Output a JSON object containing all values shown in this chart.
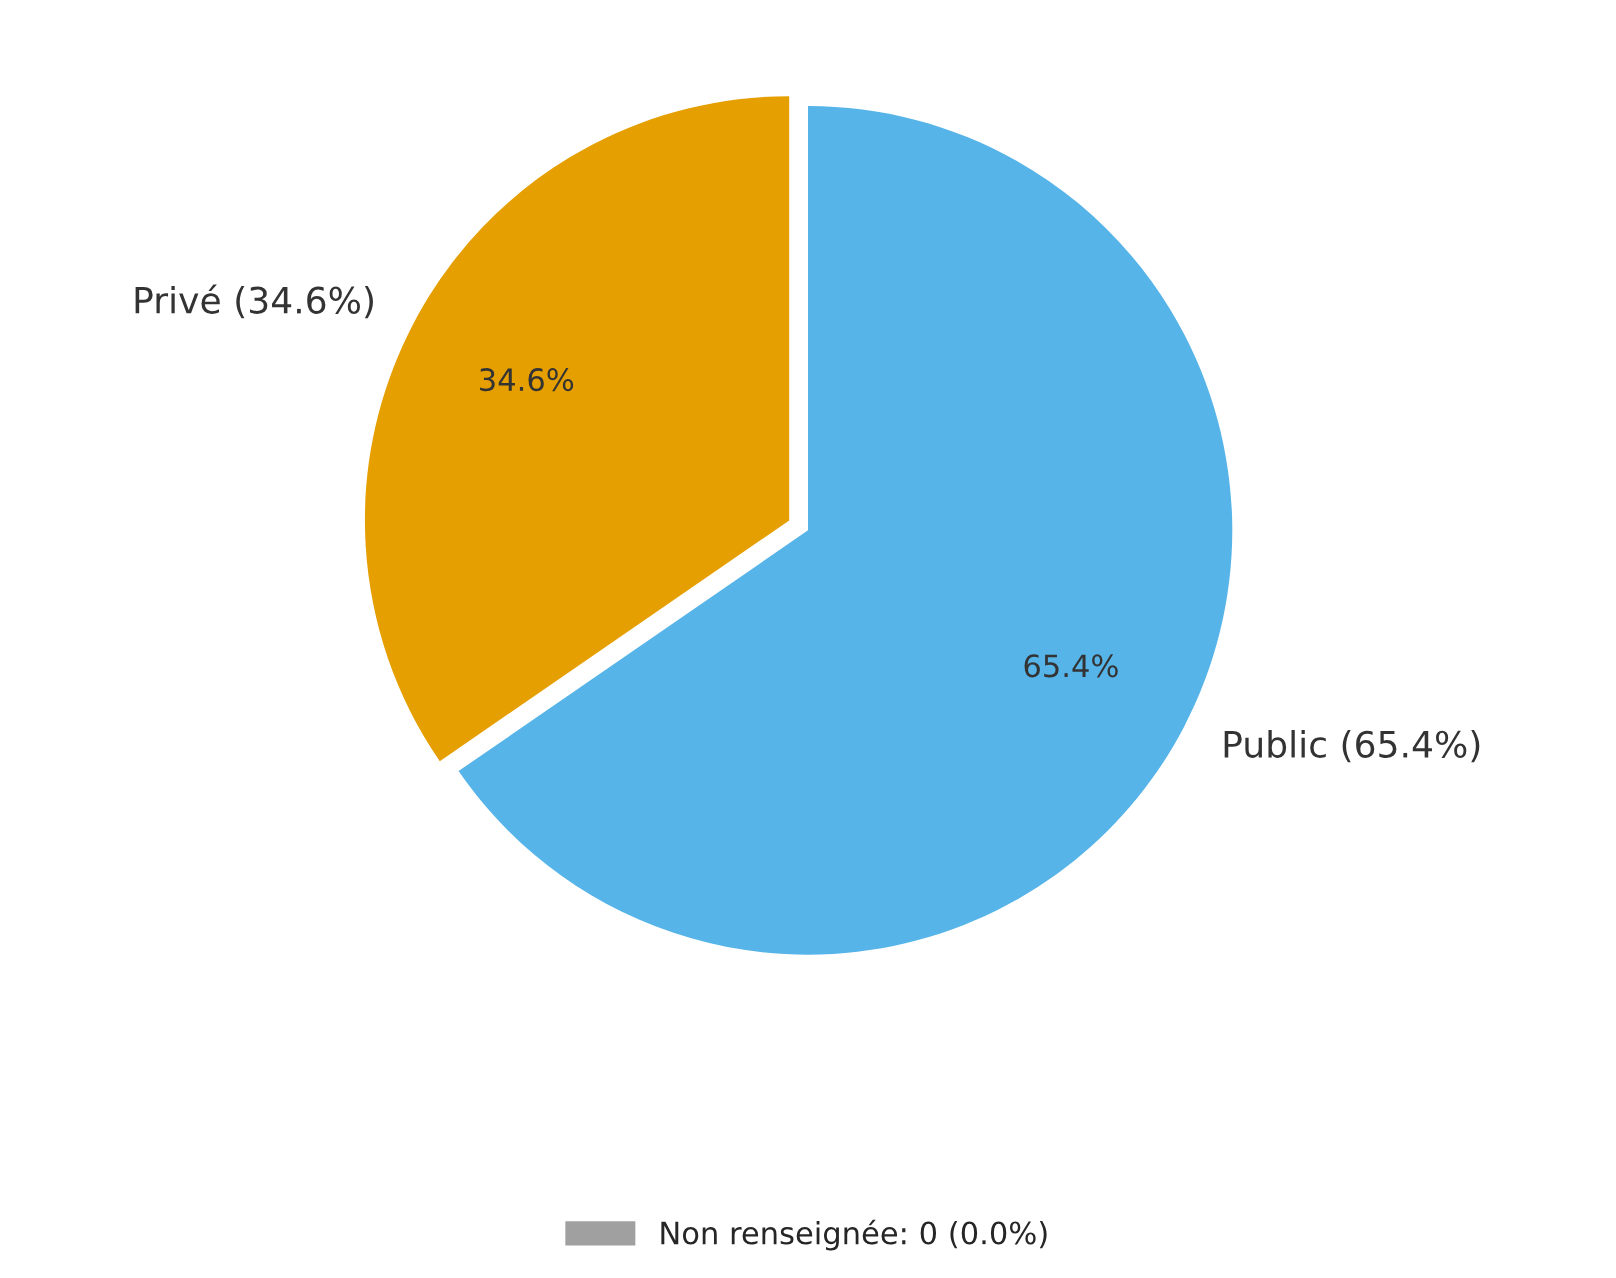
{
  "chart_data": {
    "type": "pie",
    "categories": [
      "Public (65.4%)",
      "Privé (34.6%)",
      "Non renseignée: 0 (0.0%)"
    ],
    "values": [
      65.4,
      34.6,
      0
    ],
    "colors": [
      "#56b4e9",
      "#e69f00",
      "#a0a0a0"
    ],
    "value_labels": [
      "65.4%",
      "34.6%",
      null
    ],
    "legend": "bottom"
  }
}
